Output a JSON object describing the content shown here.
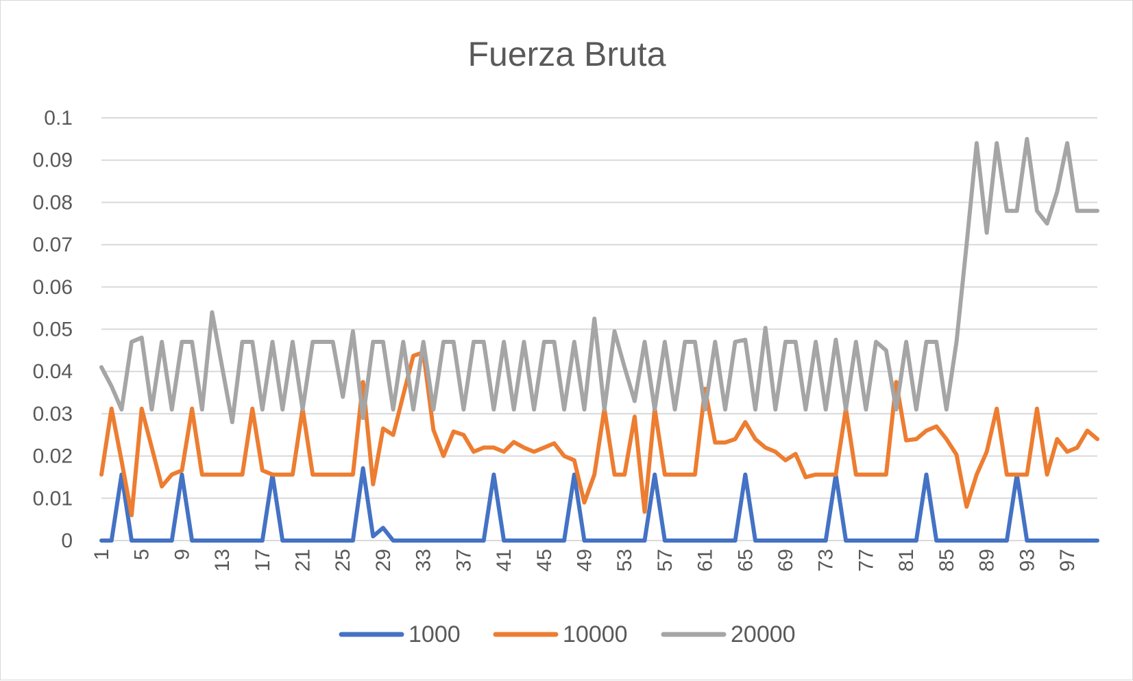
{
  "chart_data": {
    "type": "line",
    "title": "Fuerza Bruta",
    "xlabel": "",
    "ylabel": "",
    "ylim": [
      0,
      0.1
    ],
    "y_ticks": [
      "0",
      "0.01",
      "0.02",
      "0.03",
      "0.04",
      "0.05",
      "0.06",
      "0.07",
      "0.08",
      "0.09",
      "0.1"
    ],
    "x_ticks": [
      "1",
      "5",
      "9",
      "13",
      "17",
      "21",
      "25",
      "29",
      "33",
      "37",
      "41",
      "45",
      "49",
      "53",
      "57",
      "61",
      "65",
      "69",
      "73",
      "77",
      "81",
      "85",
      "89",
      "93",
      "97"
    ],
    "grid": true,
    "legend_position": "bottom",
    "x": [
      1,
      2,
      3,
      4,
      5,
      6,
      7,
      8,
      9,
      10,
      11,
      12,
      13,
      14,
      15,
      16,
      17,
      18,
      19,
      20,
      21,
      22,
      23,
      24,
      25,
      26,
      27,
      28,
      29,
      30,
      31,
      32,
      33,
      34,
      35,
      36,
      37,
      38,
      39,
      40,
      41,
      42,
      43,
      44,
      45,
      46,
      47,
      48,
      49,
      50,
      51,
      52,
      53,
      54,
      55,
      56,
      57,
      58,
      59,
      60,
      61,
      62,
      63,
      64,
      65,
      66,
      67,
      68,
      69,
      70,
      71,
      72,
      73,
      74,
      75,
      76,
      77,
      78,
      79,
      80,
      81,
      82,
      83,
      84,
      85,
      86,
      87,
      88,
      89,
      90,
      91,
      92,
      93,
      94,
      95,
      96,
      97,
      98,
      99,
      100
    ],
    "series": [
      {
        "name": "1000",
        "color": "#4472c4",
        "values": [
          0,
          0,
          0.0156,
          0,
          0,
          0,
          0,
          0,
          0.0156,
          0,
          0,
          0,
          0,
          0,
          0,
          0,
          0,
          0.0156,
          0,
          0,
          0,
          0,
          0,
          0,
          0,
          0,
          0.0171,
          0.001,
          0.003,
          0,
          0,
          0,
          0,
          0,
          0,
          0,
          0,
          0,
          0,
          0.0156,
          0,
          0,
          0,
          0,
          0,
          0,
          0,
          0.0156,
          0,
          0,
          0,
          0,
          0,
          0,
          0,
          0.0156,
          0,
          0,
          0,
          0,
          0,
          0,
          0,
          0,
          0.0156,
          0,
          0,
          0,
          0,
          0,
          0,
          0,
          0,
          0.0156,
          0,
          0,
          0,
          0,
          0,
          0,
          0,
          0,
          0.0156,
          0,
          0,
          0,
          0,
          0,
          0,
          0,
          0,
          0.0156,
          0,
          0,
          0,
          0,
          0,
          0,
          0,
          0
        ]
      },
      {
        "name": "10000",
        "color": "#ed7d31",
        "values": [
          0.0156,
          0.0312,
          0.0188,
          0.006,
          0.0312,
          0.022,
          0.0128,
          0.0156,
          0.0166,
          0.0312,
          0.0156,
          0.0156,
          0.0156,
          0.0156,
          0.0156,
          0.0312,
          0.0166,
          0.0156,
          0.0156,
          0.0156,
          0.0312,
          0.0156,
          0.0156,
          0.0156,
          0.0156,
          0.0156,
          0.0375,
          0.0133,
          0.0265,
          0.025,
          0.0344,
          0.0437,
          0.0445,
          0.0262,
          0.02,
          0.0258,
          0.025,
          0.021,
          0.022,
          0.022,
          0.021,
          0.0233,
          0.022,
          0.021,
          0.022,
          0.023,
          0.02,
          0.019,
          0.009,
          0.0156,
          0.0312,
          0.0156,
          0.0156,
          0.0293,
          0.0068,
          0.0312,
          0.0156,
          0.0156,
          0.0156,
          0.0156,
          0.0359,
          0.0232,
          0.0232,
          0.024,
          0.028,
          0.024,
          0.022,
          0.021,
          0.019,
          0.0205,
          0.015,
          0.0156,
          0.0156,
          0.0156,
          0.0312,
          0.0156,
          0.0156,
          0.0156,
          0.0156,
          0.0375,
          0.0237,
          0.024,
          0.026,
          0.027,
          0.024,
          0.0203,
          0.008,
          0.0156,
          0.021,
          0.0312,
          0.0156,
          0.0156,
          0.0156,
          0.0312,
          0.0156,
          0.024,
          0.021,
          0.022,
          0.026,
          0.024
        ]
      },
      {
        "name": "20000",
        "color": "#a5a5a5",
        "values": [
          0.041,
          0.0365,
          0.031,
          0.047,
          0.048,
          0.031,
          0.047,
          0.031,
          0.047,
          0.047,
          0.031,
          0.054,
          0.041,
          0.028,
          0.047,
          0.047,
          0.031,
          0.047,
          0.031,
          0.047,
          0.031,
          0.047,
          0.047,
          0.047,
          0.034,
          0.0495,
          0.029,
          0.047,
          0.047,
          0.031,
          0.047,
          0.031,
          0.047,
          0.031,
          0.047,
          0.047,
          0.031,
          0.047,
          0.047,
          0.031,
          0.047,
          0.031,
          0.047,
          0.031,
          0.047,
          0.047,
          0.031,
          0.047,
          0.031,
          0.0525,
          0.031,
          0.0495,
          0.041,
          0.033,
          0.047,
          0.031,
          0.047,
          0.031,
          0.047,
          0.047,
          0.031,
          0.047,
          0.031,
          0.047,
          0.0475,
          0.031,
          0.0503,
          0.031,
          0.047,
          0.047,
          0.031,
          0.047,
          0.031,
          0.0475,
          0.031,
          0.047,
          0.031,
          0.047,
          0.045,
          0.031,
          0.047,
          0.031,
          0.047,
          0.047,
          0.031,
          0.047,
          0.07,
          0.094,
          0.0728,
          0.094,
          0.078,
          0.078,
          0.095,
          0.078,
          0.075,
          0.0825,
          0.094,
          0.078,
          0.078,
          0.078
        ]
      }
    ]
  }
}
